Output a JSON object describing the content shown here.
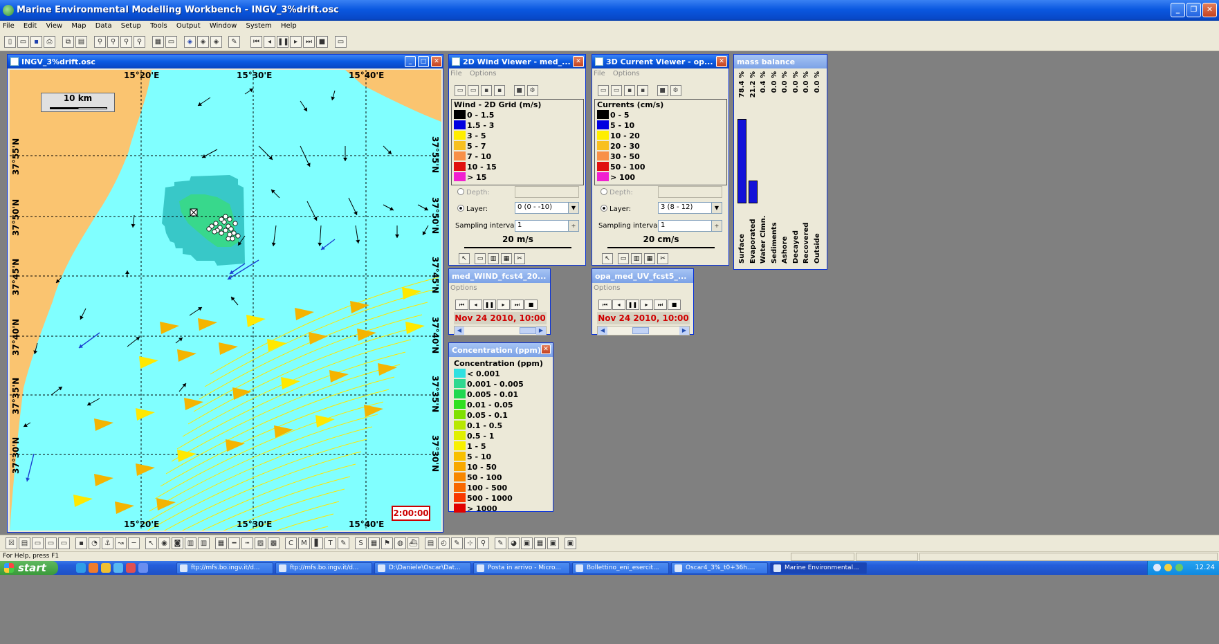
{
  "app": {
    "title": "Marine Environmental Modelling Workbench - INGV_3%drift.osc",
    "menu": [
      "File",
      "Edit",
      "View",
      "Map",
      "Data",
      "Setup",
      "Tools",
      "Output",
      "Window",
      "System",
      "Help"
    ]
  },
  "map_window": {
    "title": "INGV_3%drift.osc",
    "scale_label": "10 km",
    "lon_labels": [
      "15°20'E",
      "15°30'E",
      "15°40'E"
    ],
    "lat_labels": [
      "37°55'N",
      "37°50'N",
      "37°45'N",
      "37°40'N",
      "37°35'N",
      "37°30'N"
    ],
    "time": "2:00:00",
    "colors": {
      "sea": "#80ffff",
      "land": "#fac470",
      "plume_outer": "#38c8c8",
      "plume_inner": "#38d88c",
      "arrow_black": "#000000",
      "arrow_blue": "#1a3fd0",
      "arrow_yellow": "#ffe800",
      "arrow_orange": "#f4b400"
    }
  },
  "wind_viewer": {
    "title": "2D Wind Viewer - med_...",
    "menu": [
      "File",
      "Options"
    ],
    "legend_title": "Wind - 2D Grid (m/s)",
    "legend": [
      {
        "label": "0 - 1.5",
        "color": "#000000"
      },
      {
        "label": "1.5 - 3",
        "color": "#0000e0"
      },
      {
        "label": "3 - 5",
        "color": "#ffee00"
      },
      {
        "label": "5 - 7",
        "color": "#f8c020"
      },
      {
        "label": "7 - 10",
        "color": "#f89048"
      },
      {
        "label": "10 - 15",
        "color": "#e01010"
      },
      {
        "label": "> 15",
        "color": "#f020d0"
      }
    ],
    "depth_label": "Depth:",
    "layer_label": "Layer:",
    "layer_value": "0 (0 - -10)",
    "sampling_label": "Sampling interval:",
    "sampling_value": "1",
    "scale": "20 m/s"
  },
  "current_viewer": {
    "title": "3D Current Viewer - op...",
    "menu": [
      "File",
      "Options"
    ],
    "legend_title": "Currents (cm/s)",
    "legend": [
      {
        "label": "0 - 5",
        "color": "#000000"
      },
      {
        "label": "5 - 10",
        "color": "#0000e0"
      },
      {
        "label": "10 - 20",
        "color": "#ffee00"
      },
      {
        "label": "20 - 30",
        "color": "#f8c020"
      },
      {
        "label": "30 - 50",
        "color": "#f89048"
      },
      {
        "label": "50 - 100",
        "color": "#e01010"
      },
      {
        "label": "> 100",
        "color": "#f020d0"
      }
    ],
    "depth_label": "Depth:",
    "layer_label": "Layer:",
    "layer_value": "3 (8 - 12)",
    "sampling_label": "Sampling interval:",
    "sampling_value": "1",
    "scale": "20 cm/s"
  },
  "wind_player": {
    "title": "med_WIND_fcst4_20...",
    "menu": "Options",
    "date": "Nov 24 2010, 10:00"
  },
  "current_player": {
    "title": "opa_med_UV_fcst5_...",
    "menu": "Options",
    "date": "Nov 24 2010, 10:00"
  },
  "concentration": {
    "title": "Concentration (ppm)",
    "legend_title": "Concentration (ppm)",
    "legend": [
      {
        "label": "< 0.001",
        "color": "#30e0e0"
      },
      {
        "label": "0.001 - 0.005",
        "color": "#30d890"
      },
      {
        "label": "0.005 - 0.01",
        "color": "#20d850"
      },
      {
        "label": "0.01 - 0.05",
        "color": "#30e020"
      },
      {
        "label": "0.05 - 0.1",
        "color": "#80e000"
      },
      {
        "label": "0.1 - 0.5",
        "color": "#b8e800"
      },
      {
        "label": "0.5 - 1",
        "color": "#e0f000"
      },
      {
        "label": "1 - 5",
        "color": "#f8f000"
      },
      {
        "label": "5 - 10",
        "color": "#f8c000"
      },
      {
        "label": "10 - 50",
        "color": "#f8a800"
      },
      {
        "label": "50 - 100",
        "color": "#f88800"
      },
      {
        "label": "100 - 500",
        "color": "#f86800"
      },
      {
        "label": "500 - 1000",
        "color": "#f83800"
      },
      {
        "label": "> 1000",
        "color": "#e00000"
      }
    ]
  },
  "mass_balance": {
    "title": "mass balance",
    "items": [
      {
        "category": "Surface",
        "percent": "78.4 %",
        "value": 78.4
      },
      {
        "category": "Evaporated",
        "percent": "21.2 %",
        "value": 21.2
      },
      {
        "category": "Water Clmn.",
        "percent": "0.4 %",
        "value": 0.4
      },
      {
        "category": "Sediments",
        "percent": "0.0 %",
        "value": 0
      },
      {
        "category": "Ashore",
        "percent": "0.0 %",
        "value": 0
      },
      {
        "category": "Decayed",
        "percent": "0.0 %",
        "value": 0
      },
      {
        "category": "Recovered",
        "percent": "0.0 %",
        "value": 0
      },
      {
        "category": "Outside",
        "percent": "0.0 %",
        "value": 0
      }
    ]
  },
  "status": {
    "text": "For Help, press F1"
  },
  "taskbar": {
    "start": "start",
    "tasks": [
      "ftp://mfs.bo.ingv.it/d...",
      "ftp://mfs.bo.ingv.it/d...",
      "D:\\Daniele\\Oscar\\Dat...",
      "Posta in arrivo - Micro...",
      "Bollettino_eni_esercit...",
      "Oscar4_3%_t0+36h....",
      "Marine Environmental..."
    ],
    "clock": "12.24"
  }
}
